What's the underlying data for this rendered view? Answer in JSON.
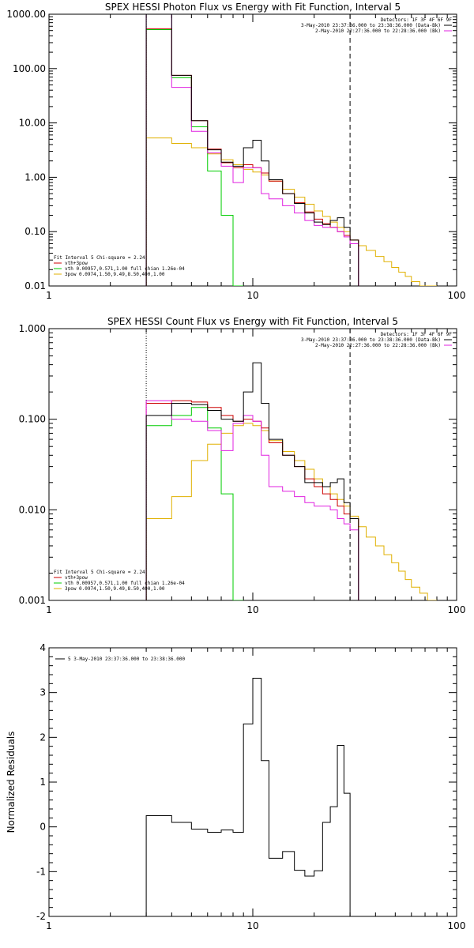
{
  "chart_data": [
    {
      "type": "line",
      "title": "SPEX HESSI Photon Flux vs Energy with Fit Function, Interval 5",
      "xlabel": "",
      "ylabel": "",
      "xscale": "log",
      "yscale": "log",
      "xlim": [
        1,
        100
      ],
      "ylim": [
        0.01,
        1000
      ],
      "xticks": [
        "1",
        "10",
        "100"
      ],
      "yticks": [
        "1000.00",
        "100.00",
        "10.00",
        "1.00",
        "0.10",
        "0.01"
      ],
      "legend_top_right": {
        "header": "Detectors: 1F 3F 4F 6F 9F",
        "entries": [
          {
            "text": "3-May-2010 23:37:36.000 to 23:38:36.000 (Data-Bk)",
            "color": "#000000"
          },
          {
            "text": "2-May-2010 22:27:36.000 to 22:28:36.000 (Bk)",
            "color": "#e020e0"
          }
        ]
      },
      "legend_bottom_left": {
        "header": "Fit Interval 5   Chi-square = 2.24",
        "entries": [
          {
            "text": "vth+3pow",
            "color": "#cc0000"
          },
          {
            "text": "vth 0.00957,0.571,1.00   full chian 1.26e-04",
            "color": "#00cc00"
          },
          {
            "text": "3pow 0.0974,1.50,9.49,8.50,400,1.00",
            "color": "#e0b000"
          }
        ]
      },
      "vlines": [
        {
          "x": 3,
          "style": "dotted",
          "color": "#000000"
        },
        {
          "x": 30,
          "style": "dashed",
          "color": "#000000"
        }
      ],
      "edges": [
        3,
        4,
        5,
        6,
        7,
        8,
        9,
        10,
        11,
        12,
        14,
        16,
        18,
        20,
        22,
        24,
        26,
        28,
        30,
        33,
        36,
        40,
        44,
        48,
        52,
        56,
        60,
        66,
        72,
        80
      ],
      "series": [
        {
          "name": "",
          "color": "#000000",
          "values": [
            1000,
            75,
            11,
            3.2,
            1.9,
            1.6,
            3.5,
            4.8,
            2.0,
            0.9,
            0.5,
            0.33,
            0.22,
            0.15,
            0.135,
            0.16,
            0.18,
            0.12,
            0.07
          ]
        },
        {
          "name": "",
          "color": "#cc0000",
          "values": [
            540,
            75,
            11,
            3.3,
            1.85,
            1.5,
            1.7,
            1.5,
            1.2,
            0.85,
            0.5,
            0.34,
            0.23,
            0.17,
            0.14,
            0.12,
            0.1,
            0.085,
            0.07
          ]
        },
        {
          "name": "",
          "color": "#00cc00",
          "values": [
            520,
            68,
            8.5,
            1.3,
            0.2,
            0.01
          ]
        },
        {
          "name": "",
          "color": "#e0b000",
          "values": [
            5.3,
            4.2,
            3.5,
            2.7,
            2.1,
            1.7,
            1.4,
            1.25,
            1.1,
            0.85,
            0.6,
            0.43,
            0.32,
            0.24,
            0.19,
            0.15,
            0.12,
            0.1,
            0.07,
            0.055,
            0.045,
            0.035,
            0.028,
            0.022,
            0.018,
            0.015,
            0.012,
            0.01,
            0.01
          ]
        },
        {
          "name": "",
          "color": "#e020e0",
          "values": [
            1000,
            45,
            7,
            2.8,
            1.6,
            0.8,
            1.5,
            1.5,
            0.5,
            0.4,
            0.3,
            0.22,
            0.16,
            0.13,
            0.12,
            0.12,
            0.1,
            0.08,
            0.06
          ]
        }
      ]
    },
    {
      "type": "line",
      "title": "SPEX HESSI Count Flux vs Energy with Fit Function, Interval 5",
      "xlabel": "",
      "ylabel": "",
      "xscale": "log",
      "yscale": "log",
      "xlim": [
        1,
        100
      ],
      "ylim": [
        0.001,
        1
      ],
      "xticks": [
        "1",
        "10",
        "100"
      ],
      "yticks": [
        "1.000",
        "0.100",
        "0.010",
        "0.001"
      ],
      "legend_top_right": {
        "header": "Detectors: 1F 3F 4F 6F 9F",
        "entries": [
          {
            "text": "3-May-2010 23:37:36.000 to 23:38:36.000 (Data-Bk)",
            "color": "#000000"
          },
          {
            "text": "2-May-2010 22:27:36.000 to 22:28:36.000 (Bk)",
            "color": "#e020e0"
          }
        ]
      },
      "legend_bottom_left": {
        "header": "Fit Interval 5   Chi-square = 2.24",
        "entries": [
          {
            "text": "vth+3pow",
            "color": "#cc0000"
          },
          {
            "text": "vth 0.00957,0.571,1.00   full chian 1.26e-04",
            "color": "#00cc00"
          },
          {
            "text": "3pow 0.0974,1.50,9.49,8.50,400,1.00",
            "color": "#e0b000"
          }
        ]
      },
      "vlines": [
        {
          "x": 3,
          "style": "dotted",
          "color": "#000000"
        },
        {
          "x": 30,
          "style": "dashed",
          "color": "#000000"
        }
      ],
      "edges": [
        3,
        4,
        5,
        6,
        7,
        8,
        9,
        10,
        11,
        12,
        14,
        16,
        18,
        20,
        22,
        24,
        26,
        28,
        30,
        33,
        36,
        40,
        44,
        48,
        52,
        56,
        60,
        66,
        72,
        80
      ],
      "series": [
        {
          "name": "",
          "color": "#000000",
          "values": [
            0.11,
            0.15,
            0.145,
            0.125,
            0.1,
            0.095,
            0.2,
            0.42,
            0.15,
            0.06,
            0.04,
            0.03,
            0.02,
            0.02,
            0.018,
            0.02,
            0.022,
            0.012,
            0.008
          ]
        },
        {
          "name": "",
          "color": "#cc0000",
          "values": [
            0.15,
            0.16,
            0.155,
            0.135,
            0.11,
            0.095,
            0.1,
            0.095,
            0.08,
            0.055,
            0.04,
            0.03,
            0.022,
            0.018,
            0.015,
            0.013,
            0.011,
            0.009,
            0.008
          ]
        },
        {
          "name": "",
          "color": "#00cc00",
          "values": [
            0.085,
            0.11,
            0.135,
            0.08,
            0.015,
            0.001
          ]
        },
        {
          "name": "",
          "color": "#e0b000",
          "values": [
            0.008,
            0.014,
            0.035,
            0.053,
            0.07,
            0.085,
            0.09,
            0.085,
            0.075,
            0.058,
            0.044,
            0.035,
            0.028,
            0.022,
            0.018,
            0.015,
            0.013,
            0.011,
            0.0085,
            0.0065,
            0.005,
            0.004,
            0.0032,
            0.0026,
            0.0021,
            0.0017,
            0.0014,
            0.0012,
            0.001
          ]
        },
        {
          "name": "",
          "color": "#e020e0",
          "values": [
            0.16,
            0.1,
            0.095,
            0.075,
            0.045,
            0.09,
            0.11,
            0.095,
            0.04,
            0.018,
            0.016,
            0.014,
            0.012,
            0.011,
            0.011,
            0.01,
            0.008,
            0.007,
            0.006
          ]
        }
      ]
    },
    {
      "type": "line",
      "title": "",
      "xlabel": "",
      "ylabel": "Normalized Residuals",
      "xscale": "log",
      "yscale": "linear",
      "xlim": [
        1,
        100
      ],
      "ylim": [
        -2,
        4
      ],
      "xticks": [
        "1",
        "10",
        "100"
      ],
      "yticks": [
        "4",
        "3",
        "2",
        "1",
        "0",
        "-1",
        "-2"
      ],
      "legend_top_left": {
        "entries": [
          {
            "text": "5  3-May-2010 23:37:36.000 to 23:38:36.000",
            "color": "#000000"
          }
        ]
      },
      "edges": [
        3,
        4,
        5,
        6,
        7,
        8,
        9,
        10,
        11,
        12,
        14,
        16,
        18,
        20,
        22,
        24,
        26,
        28,
        30
      ],
      "series": [
        {
          "name": "",
          "color": "#000000",
          "values": [
            0.25,
            0.1,
            -0.05,
            -0.12,
            -0.07,
            -0.12,
            2.3,
            3.32,
            1.48,
            -0.7,
            -0.55,
            -0.97,
            -1.1,
            -0.98,
            0.1,
            0.45,
            1.82,
            0.75
          ]
        }
      ]
    }
  ]
}
